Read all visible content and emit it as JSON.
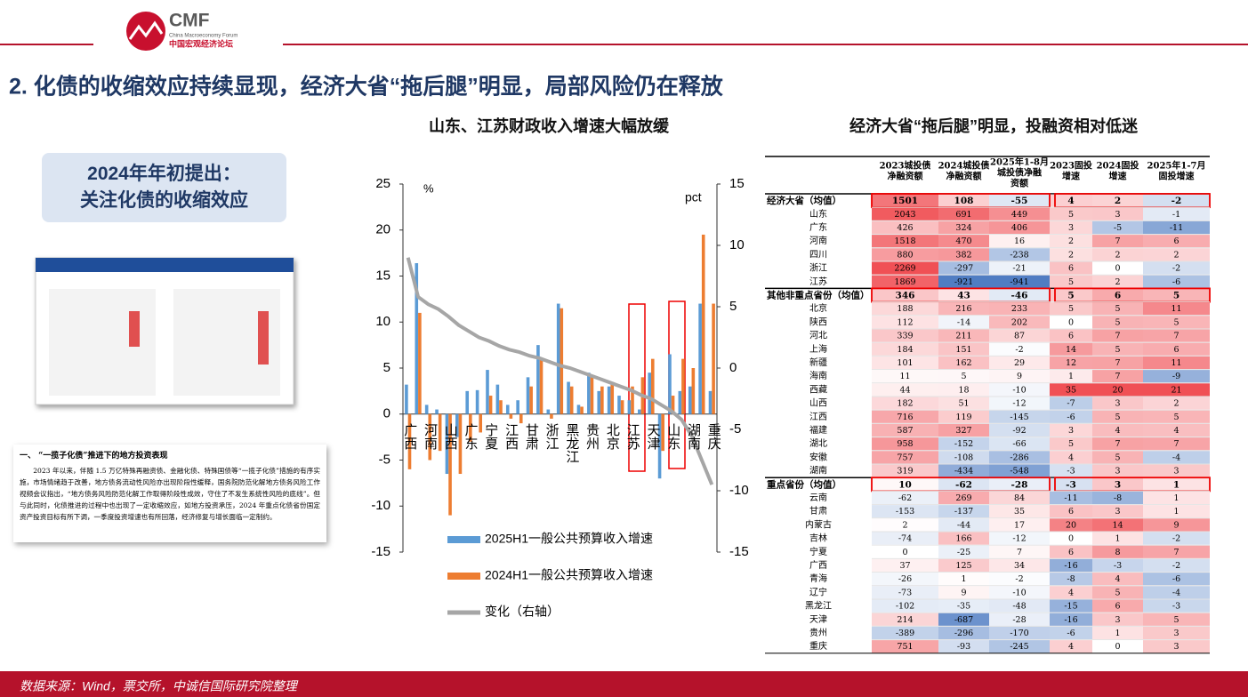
{
  "header": {
    "logo": "CMF",
    "logo_en": "China Macroeconomy Forum",
    "logo_cn": "中国宏观经济论坛"
  },
  "title": "2. 化债的收缩效应持续显现，经济大省“拖后腿”明显，局部风险仍在释放",
  "callout": [
    "2024年年初提出：",
    "关注化债的收缩效应"
  ],
  "excerpt": {
    "heading": "一、  “一揽子化债”推进下的地方投资表现",
    "text": "2023 年以来，伴随 1.5 万亿特殊再融资债、金融化债、特殊国债等“一揽子化债”措施的有序实施，市场情绪趋于改善，地方债务流动性风险亦出现阶段性缓释，国务院防范化解地方债务风险工作视频会议指出，“地方债务风险防范化解工作取得阶段性成效，守住了不发生系统性风险的底线”。但与此同时，化债推进的过程中也出现了一定收缩效应，如地方投资承压，2024 年重点化债省份国定资产投资目标有所下调，一季度投资增速也有所回落，经济修复与增长面临一定制约。"
  },
  "chart_data": {
    "type": "bar",
    "title": "山东、江苏财政收入增速大幅放缓",
    "y_label": "%",
    "y2_label": "pct",
    "categories": [
      "广西",
      null,
      "河南",
      null,
      "山西",
      null,
      "广东",
      null,
      "宁夏",
      null,
      "江西",
      null,
      "甘肃",
      null,
      "浙江",
      null,
      "黑龙江",
      null,
      "贵州",
      null,
      "北京",
      null,
      "江苏",
      null,
      "天津",
      null,
      "山东",
      null,
      "湖南",
      null,
      "重庆"
    ],
    "series": [
      {
        "name": "2025H1一般公共预算收入增速",
        "color": "#5b9bd5",
        "values": [
          3.2,
          16.4,
          1,
          0.5,
          -6.5,
          -2.5,
          2.5,
          2.6,
          4.8,
          3.2,
          1,
          1.5,
          4,
          7.5,
          0.5,
          12,
          3.5,
          1,
          4.5,
          2.5,
          3,
          2,
          1.5,
          0.5,
          4.5,
          -7,
          6.5,
          2.5,
          3,
          12,
          2.5
        ]
      },
      {
        "name": "2024H1一般公共预算收入增速",
        "color": "#ed7d31",
        "values": [
          -6,
          11,
          -5,
          -4,
          -11,
          -6.5,
          -3,
          -2,
          2,
          1.5,
          -0.5,
          -1,
          3,
          6,
          -0.5,
          11.5,
          3,
          0.8,
          4.2,
          3,
          3.5,
          1.5,
          3,
          4,
          6,
          -4,
          2,
          6,
          5,
          19.5,
          12
        ]
      },
      {
        "name": "变化（右轴）",
        "color": "#a6a6a6",
        "type": "line",
        "axis": "y2",
        "values": [
          9,
          5.8,
          5.2,
          4.8,
          4.2,
          3.5,
          3,
          2.5,
          2.2,
          1.8,
          1.5,
          1.3,
          1,
          0.8,
          0.5,
          0.2,
          0,
          -0.3,
          -0.6,
          -0.9,
          -1.2,
          -1.5,
          -1.8,
          -2.2,
          -2.5,
          -3,
          -3.5,
          -4.2,
          -5.5,
          -7.5,
          -9.5
        ]
      }
    ],
    "ylim": [
      -15,
      25
    ],
    "yticks": [
      -15,
      -10,
      -5,
      0,
      5,
      10,
      15,
      20,
      25
    ],
    "y2lim": [
      -15,
      15
    ],
    "y2ticks": [
      -15,
      -10,
      -5,
      0,
      5,
      10,
      15
    ],
    "legend": "bottom"
  },
  "table": {
    "title": "经济大省“拖后腿”明显，投融资相对低迷",
    "columns": [
      [
        "2023城投债",
        "净融资额"
      ],
      [
        "2024城投债",
        "净融资额"
      ],
      [
        "2025年1-8月",
        "城投债净融",
        "资额"
      ],
      [
        "2023固投",
        "增速"
      ],
      [
        "2024固投",
        "增速"
      ],
      [
        "2025年1-7月",
        "固投增速"
      ]
    ],
    "groups": [
      {
        "name": "经济大省（均值）",
        "values": [
          1501,
          108,
          -55,
          4,
          2,
          -2
        ],
        "rows": [
          {
            "name": "山东",
            "values": [
              2043,
              691,
              449,
              5,
              3,
              -1
            ]
          },
          {
            "name": "广东",
            "values": [
              426,
              324,
              406,
              3,
              -5,
              -11
            ]
          },
          {
            "name": "河南",
            "values": [
              1518,
              470,
              16,
              2,
              7,
              6
            ]
          },
          {
            "name": "四川",
            "values": [
              880,
              382,
              -238,
              2,
              2,
              2
            ]
          },
          {
            "name": "浙江",
            "values": [
              2269,
              -297,
              -21,
              6,
              0,
              -2
            ]
          },
          {
            "name": "江苏",
            "values": [
              1869,
              -921,
              -941,
              5,
              2,
              -6
            ]
          }
        ]
      },
      {
        "name": "其他非重点省份（均值）",
        "values": [
          346,
          43,
          -46,
          5,
          6,
          5
        ],
        "rows": [
          {
            "name": "北京",
            "values": [
              188,
              216,
              233,
              5,
              5,
              11
            ]
          },
          {
            "name": "陕西",
            "values": [
              112,
              -14,
              202,
              0,
              5,
              5
            ]
          },
          {
            "name": "河北",
            "values": [
              339,
              211,
              87,
              6,
              7,
              7
            ]
          },
          {
            "name": "上海",
            "values": [
              184,
              151,
              -2,
              14,
              5,
              6
            ]
          },
          {
            "name": "新疆",
            "values": [
              101,
              162,
              29,
              12,
              7,
              11
            ]
          },
          {
            "name": "海南",
            "values": [
              11,
              5,
              9,
              1,
              7,
              -9
            ]
          },
          {
            "name": "西藏",
            "values": [
              44,
              18,
              -10,
              35,
              20,
              21
            ]
          },
          {
            "name": "山西",
            "values": [
              182,
              51,
              -12,
              -7,
              3,
              2
            ]
          },
          {
            "name": "江西",
            "values": [
              716,
              119,
              -145,
              -6,
              5,
              5
            ]
          },
          {
            "name": "福建",
            "values": [
              587,
              327,
              -92,
              3,
              4,
              4
            ]
          },
          {
            "name": "湖北",
            "values": [
              958,
              -152,
              -66,
              5,
              7,
              7
            ]
          },
          {
            "name": "安徽",
            "values": [
              757,
              -108,
              -286,
              4,
              5,
              -4
            ]
          },
          {
            "name": "湖南",
            "values": [
              319,
              -434,
              -548,
              -3,
              3,
              3
            ]
          }
        ]
      },
      {
        "name": "重点省份（均值）",
        "values": [
          10,
          -62,
          -28,
          -3,
          3,
          1
        ],
        "rows": [
          {
            "name": "云南",
            "values": [
              -62,
              269,
              84,
              -11,
              -8,
              1
            ]
          },
          {
            "name": "甘肃",
            "values": [
              -153,
              -137,
              35,
              6,
              3,
              1
            ]
          },
          {
            "name": "内蒙古",
            "values": [
              2,
              -44,
              17,
              20,
              14,
              9
            ]
          },
          {
            "name": "吉林",
            "values": [
              -74,
              166,
              -12,
              0,
              1,
              -2
            ]
          },
          {
            "name": "宁夏",
            "values": [
              0,
              -25,
              7,
              6,
              8,
              7
            ]
          },
          {
            "name": "广西",
            "values": [
              37,
              125,
              34,
              -16,
              -3,
              -2
            ]
          },
          {
            "name": "青海",
            "values": [
              -26,
              1,
              -2,
              -8,
              4,
              -6
            ]
          },
          {
            "name": "辽宁",
            "values": [
              -73,
              9,
              -10,
              4,
              5,
              -4
            ]
          },
          {
            "name": "黑龙江",
            "values": [
              -102,
              -35,
              -48,
              -15,
              6,
              -3
            ]
          },
          {
            "name": "天津",
            "values": [
              214,
              -687,
              -28,
              -16,
              3,
              5
            ]
          },
          {
            "name": "贵州",
            "values": [
              -389,
              -296,
              -170,
              -6,
              1,
              3
            ]
          },
          {
            "name": "重庆",
            "values": [
              751,
              -93,
              -245,
              4,
              0,
              3
            ]
          }
        ]
      }
    ]
  },
  "footer": "数据来源：Wind，票交所，中诚信国际研究院整理"
}
